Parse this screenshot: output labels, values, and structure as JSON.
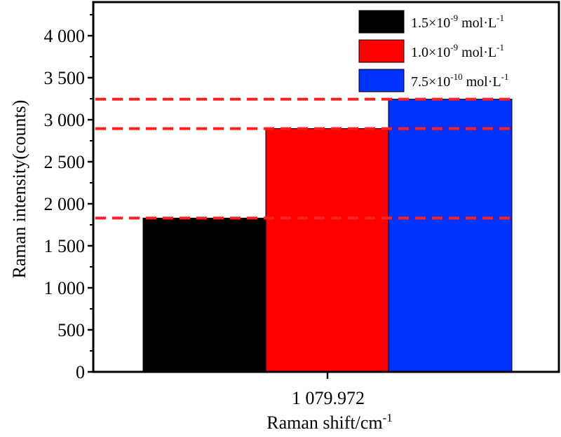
{
  "chart_data": {
    "type": "bar",
    "xlabel": "Raman shift/cm",
    "xlabel_sup": "-1",
    "ylabel": "Raman intensity(counts)",
    "category_label": "1 079.972",
    "ylim": [
      0,
      4400
    ],
    "yticks": [
      {
        "value": 0,
        "label": "0"
      },
      {
        "value": 500,
        "label": "500"
      },
      {
        "value": 1000,
        "label": "1 000"
      },
      {
        "value": 1500,
        "label": "1 500"
      },
      {
        "value": 2000,
        "label": "2 000"
      },
      {
        "value": 2500,
        "label": "2 500"
      },
      {
        "value": 3000,
        "label": "3 000"
      },
      {
        "value": 3500,
        "label": "3 500"
      },
      {
        "value": 4000,
        "label": "4 000"
      }
    ],
    "series": [
      {
        "base": "1.5×10",
        "exp": "-9",
        "unit": " mol·L",
        "unit_exp": "-1",
        "value": 1830,
        "color": "#000000"
      },
      {
        "base": "1.0×10",
        "exp": "-9",
        "unit": " mol·L",
        "unit_exp": "-1",
        "value": 2895,
        "color": "#ff0000"
      },
      {
        "base": "7.5×10",
        "exp": "-10",
        "unit": " mol·L",
        "unit_exp": "-1",
        "value": 3245,
        "color": "#0033ff"
      }
    ],
    "reference_lines": [
      1830,
      2895,
      3245
    ],
    "reference_line_color": "#ff2020",
    "legend_position": "top-right",
    "grid": false
  }
}
